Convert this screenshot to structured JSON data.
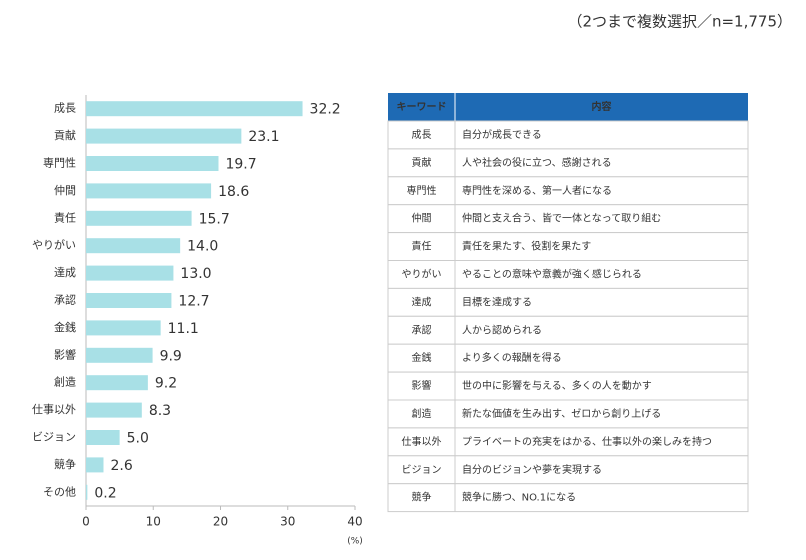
{
  "note": "（2つまで複数選択／n=1,775）",
  "chart_data": {
    "type": "bar",
    "orientation": "horizontal",
    "x_label": "(%)",
    "categories": [
      "成長",
      "貢献",
      "専門性",
      "仲間",
      "責任",
      "やりがい",
      "達成",
      "承認",
      "金銭",
      "影響",
      "創造",
      "仕事以外",
      "ビジョン",
      "競争",
      "その他"
    ],
    "values": [
      32.2,
      23.1,
      19.7,
      18.6,
      15.7,
      14.0,
      13.0,
      12.7,
      11.1,
      9.9,
      9.2,
      8.3,
      5.0,
      2.6,
      0.2
    ],
    "value_labels": [
      "32.2",
      "23.1",
      "19.7",
      "18.6",
      "15.7",
      "14.0",
      "13.0",
      "12.7",
      "11.1",
      "9.9",
      "9.2",
      "8.3",
      "5.0",
      "2.6",
      "0.2"
    ],
    "color": "#a8e0e6",
    "xlim": [
      0,
      40
    ],
    "xticks": [
      0,
      10,
      20,
      30,
      40
    ],
    "grid": false
  },
  "table": {
    "header": [
      "キーワード",
      "内容"
    ],
    "rows": [
      [
        "成長",
        "自分が成長できる"
      ],
      [
        "貢献",
        "人や社会の役に立つ、感謝される"
      ],
      [
        "専門性",
        "専門性を深める、第一人者になる"
      ],
      [
        "仲間",
        "仲間と支え合う、皆で一体となって取り組む"
      ],
      [
        "責任",
        "責任を果たす、役割を果たす"
      ],
      [
        "やりがい",
        "やることの意味や意義が強く感じられる"
      ],
      [
        "達成",
        "目標を達成する"
      ],
      [
        "承認",
        "人から認められる"
      ],
      [
        "金銭",
        "より多くの報酬を得る"
      ],
      [
        "影響",
        "世の中に影響を与える、多くの人を動かす"
      ],
      [
        "創造",
        "新たな価値を生み出す、ゼロから創り上げる"
      ],
      [
        "仕事以外",
        "プライベートの充実をはかる、仕事以外の楽しみを持つ"
      ],
      [
        "ビジョン",
        "自分のビジョンや夢を実現する"
      ],
      [
        "競争",
        "競争に勝つ、NO.1になる"
      ]
    ]
  }
}
